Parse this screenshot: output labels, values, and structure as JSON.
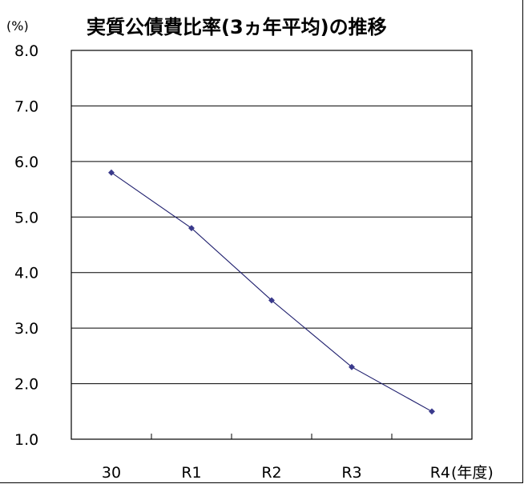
{
  "chart_data": {
    "type": "line",
    "title": "実質公債費比率(3ヵ年平均)の推移",
    "y_unit_label": "(%)",
    "x_unit_label": "(年度)",
    "categories": [
      "30",
      "R1",
      "R2",
      "R3",
      "R4"
    ],
    "series": [
      {
        "values": [
          5.8,
          4.8,
          3.5,
          2.3,
          1.5
        ],
        "color": "#1f1f6e"
      }
    ],
    "ylim": [
      1.0,
      8.0
    ],
    "y_ticks": [
      "1.0",
      "2.0",
      "3.0",
      "4.0",
      "5.0",
      "6.0",
      "7.0",
      "8.0"
    ],
    "grid": true,
    "legend": "none",
    "marker_color": "#3a3a8c"
  }
}
